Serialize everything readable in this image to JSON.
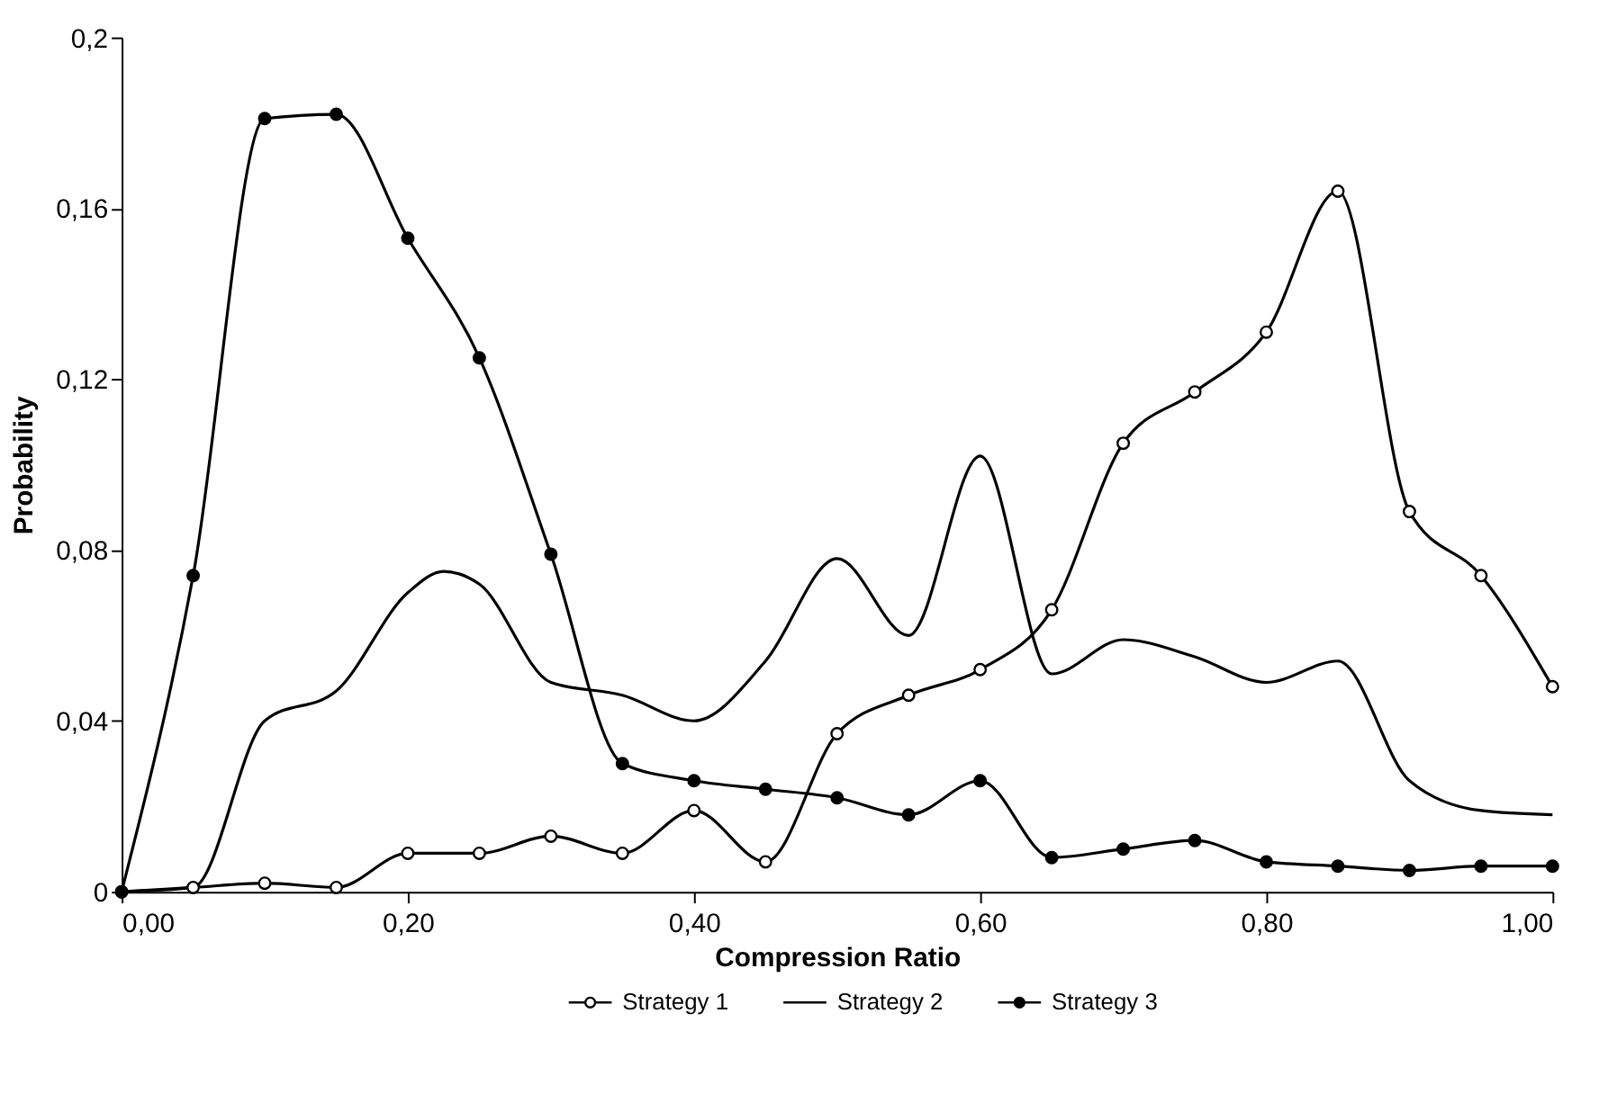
{
  "chart_data": {
    "type": "line",
    "xlabel": "Compression Ratio",
    "ylabel": "Probability",
    "x": [
      0,
      0.05,
      0.1,
      0.15,
      0.2,
      0.25,
      0.3,
      0.35,
      0.4,
      0.45,
      0.5,
      0.55,
      0.6,
      0.65,
      0.7,
      0.75,
      0.8,
      0.85,
      0.9,
      0.95,
      1
    ],
    "series": [
      {
        "name": "Strategy 1",
        "color": "#000000",
        "marker": "circle",
        "colors": [
          "#ffffff",
          "#ffffff",
          "#ffffff",
          "#ffffff",
          "#ffffff",
          "#ffffff",
          "#ffffff",
          "#ffffff",
          "#ffffff",
          "#ffffff",
          "#ffffff",
          "#ffffff",
          "#ffffff",
          "#ffffff",
          "#ffffff",
          "#ffffff",
          "#ffffff",
          "#ffffff",
          "#ffffff",
          "#ffffff",
          "#ffffff"
        ],
        "values": [
          0,
          0.001,
          0.002,
          0.001,
          0.009,
          0.009,
          0.013,
          0.009,
          0.019,
          0.007,
          0.037,
          0.046,
          0.052,
          0.066,
          0.105,
          0.117,
          0.131,
          0.164,
          0.089,
          0.074,
          0.048
        ]
      },
      {
        "name": "Strategy 2",
        "color": "#000000",
        "marker": "none",
        "x": [
          0,
          0.05,
          0.1,
          0.15,
          0.2,
          0.225,
          0.25,
          0.3,
          0.35,
          0.4,
          0.45,
          0.5,
          0.55,
          0.6,
          0.65,
          0.7,
          0.75,
          0.8,
          0.85,
          0.9,
          0.95,
          1
        ],
        "values": [
          0,
          0.001,
          0.04,
          0.047,
          0.07,
          0.075,
          0.072,
          0.049,
          0.046,
          0.04,
          0.054,
          0.078,
          0.06,
          0.102,
          0.051,
          0.059,
          0.055,
          0.049,
          0.054,
          0.026,
          0.019,
          0.018
        ]
      },
      {
        "name": "Strategy 3",
        "color": "#000000",
        "marker": "circle",
        "colors": [
          "#000000",
          "#000000",
          "#000000",
          "#000000",
          "#000000",
          "#000000",
          "#000000",
          "#000000",
          "#000000",
          "#000000",
          "#000000",
          "#000000",
          "#000000",
          "#000000",
          "#000000",
          "#000000",
          "#000000",
          "#000000",
          "#000000",
          "#000000",
          "#000000"
        ],
        "values": [
          0,
          0.074,
          0.181,
          0.182,
          0.153,
          0.125,
          0.079,
          0.03,
          0.026,
          0.024,
          0.022,
          0.018,
          0.026,
          0.008,
          0.01,
          0.012,
          0.007,
          0.006,
          0.005,
          0.006,
          0.006
        ]
      }
    ],
    "xlim": [
      0,
      1
    ],
    "xticks": [
      {
        "value": 0,
        "label": "0,00"
      },
      {
        "value": 0.2,
        "label": "0,20"
      },
      {
        "value": 0.4,
        "label": "0,40"
      },
      {
        "value": 0.6,
        "label": "0,60"
      },
      {
        "value": 0.8,
        "label": "0,80"
      },
      {
        "value": 1,
        "label": "1,00"
      }
    ],
    "ylim": [
      0,
      0.2
    ],
    "yticks": [
      0,
      {
        "value": 0.04,
        "label": "0,04"
      },
      {
        "value": 0.08,
        "label": "0,08"
      },
      {
        "value": 0.12,
        "label": "0,12"
      },
      {
        "value": 0.16,
        "label": "0,16"
      },
      {
        "value": 0.2,
        "label": "0,2"
      }
    ],
    "grid": false,
    "legend": "bottom",
    "line_style": "solid"
  }
}
